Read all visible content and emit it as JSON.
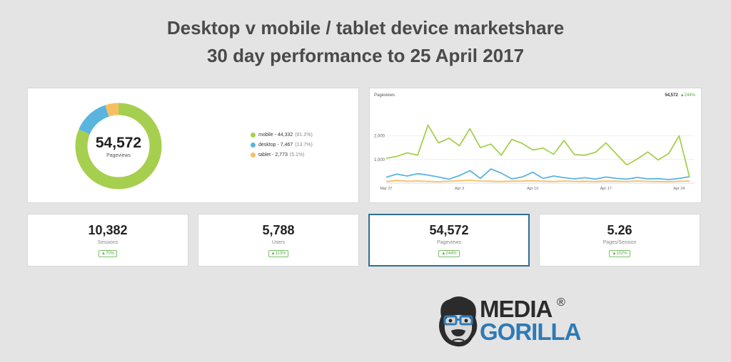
{
  "header": {
    "title_line1": "Desktop v mobile / tablet device marketshare",
    "title_line2": "30 day performance to 25 April 2017"
  },
  "colors": {
    "mobile": "#a6cf4f",
    "desktop": "#5ab4e0",
    "tablet": "#f7bf62",
    "accent": "#2e6f96",
    "positive": "#5ba74a"
  },
  "donut": {
    "total": "54,572",
    "total_label": "Pageviews",
    "legend": [
      {
        "label": "mobile - 44,332",
        "pct": "(81.2%)"
      },
      {
        "label": "desktop - 7,467",
        "pct": "(13.7%)"
      },
      {
        "label": "tablet - 2,773",
        "pct": "(5.1%)"
      }
    ]
  },
  "line_card": {
    "title": "Pageviews",
    "total": "54,572",
    "change": "▲244%"
  },
  "stats": [
    {
      "value": "10,382",
      "label": "Sessions",
      "change": "▲70%"
    },
    {
      "value": "5,788",
      "label": "Users",
      "change": "▲113%"
    },
    {
      "value": "54,572",
      "label": "Pageviews",
      "change": "▲244%"
    },
    {
      "value": "5.26",
      "label": "Pages/Session",
      "change": "▲102%"
    }
  ],
  "logo": {
    "line1": "MEDIA",
    "line2": "GORILLA",
    "reg": "®"
  },
  "chart_data": [
    {
      "type": "pie",
      "categories": [
        "mobile",
        "desktop",
        "tablet"
      ],
      "values": [
        44332,
        7467,
        2773
      ]
    },
    {
      "type": "line",
      "title": "Pageviews",
      "x": [
        "Mar 27",
        "Mar 28",
        "Mar 29",
        "Mar 30",
        "Mar 31",
        "Apr 1",
        "Apr 2",
        "Apr 3",
        "Apr 4",
        "Apr 5",
        "Apr 6",
        "Apr 7",
        "Apr 8",
        "Apr 9",
        "Apr 10",
        "Apr 11",
        "Apr 12",
        "Apr 13",
        "Apr 14",
        "Apr 15",
        "Apr 16",
        "Apr 17",
        "Apr 18",
        "Apr 19",
        "Apr 20",
        "Apr 21",
        "Apr 22",
        "Apr 23",
        "Apr 24",
        "Apr 25"
      ],
      "x_ticks": [
        "Mar 27",
        "Apr 3",
        "Apr 10",
        "Apr 17",
        "Apr 24"
      ],
      "y_ticks": [
        "1,000",
        "2,000"
      ],
      "ylim": [
        0,
        2800
      ],
      "series": [
        {
          "values": [
            1050,
            1130,
            1280,
            1180,
            2450,
            1700,
            1900,
            1580,
            2300,
            1500,
            1650,
            1180,
            1850,
            1680,
            1400,
            1480,
            1220,
            1800,
            1200,
            1180,
            1300,
            1700,
            1230,
            770,
            1020,
            1320,
            980,
            1250,
            2000,
            240
          ]
        },
        {
          "values": [
            250,
            380,
            300,
            400,
            340,
            260,
            170,
            320,
            530,
            200,
            600,
            420,
            180,
            260,
            460,
            200,
            300,
            230,
            180,
            230,
            170,
            260,
            200,
            170,
            240,
            180,
            190,
            150,
            200,
            270
          ]
        },
        {
          "values": [
            70,
            110,
            80,
            90,
            75,
            60,
            80,
            100,
            120,
            90,
            80,
            70,
            85,
            90,
            100,
            80,
            70,
            90,
            75,
            80,
            70,
            85,
            80,
            70,
            90,
            75,
            70,
            60,
            80,
            90
          ]
        }
      ]
    }
  ]
}
